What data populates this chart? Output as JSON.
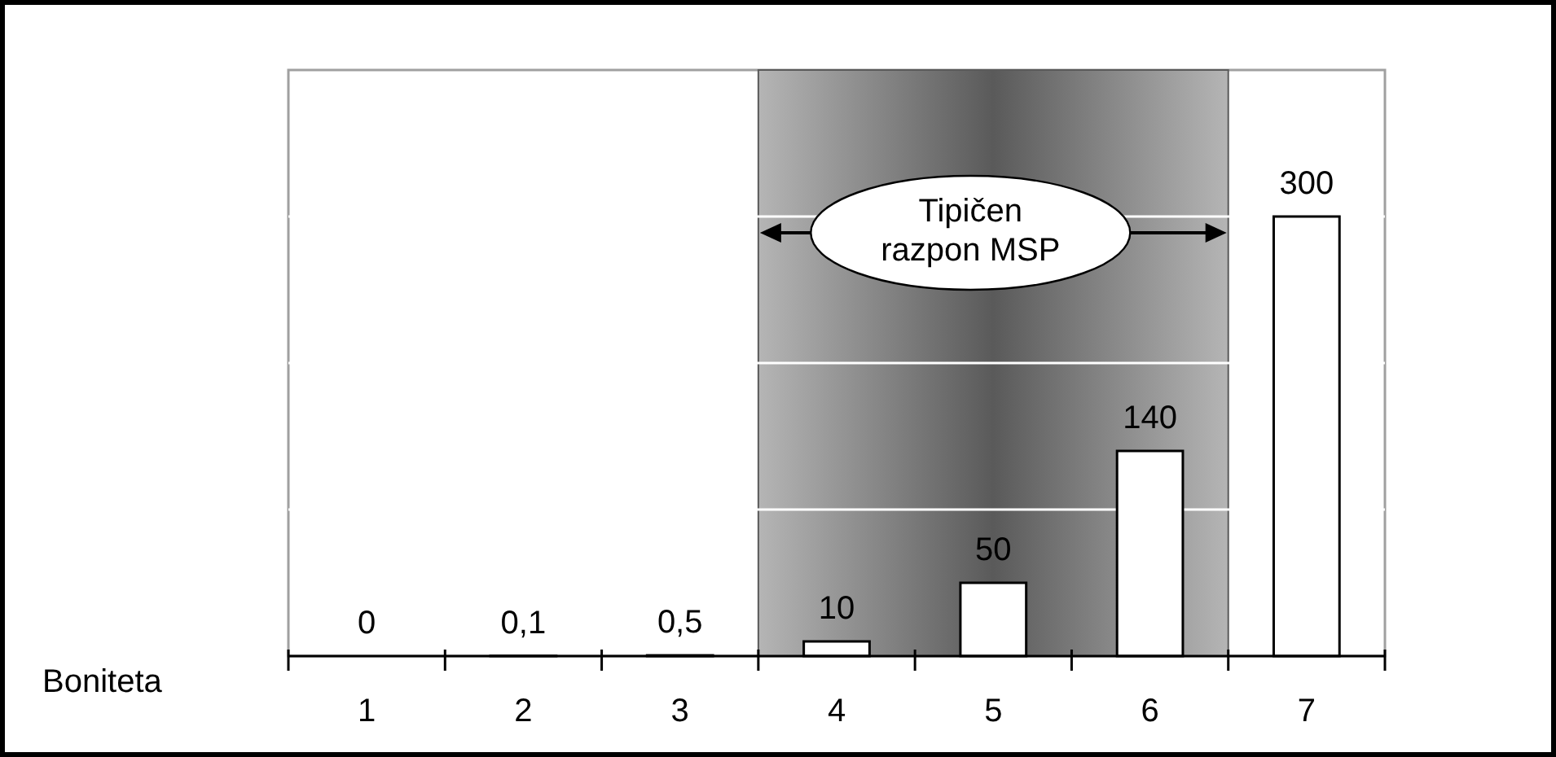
{
  "chart_data": {
    "type": "bar",
    "xlabel": "Boniteta",
    "categories": [
      "1",
      "2",
      "3",
      "4",
      "5",
      "6",
      "7"
    ],
    "values": [
      0,
      0.1,
      0.5,
      10,
      50,
      140,
      300
    ],
    "color": "#ffffff",
    "data_labels": true,
    "value_labels": [
      "0",
      "0,1",
      "0,5",
      "10",
      "50",
      "140",
      "300"
    ],
    "ylim": [
      0,
      400
    ],
    "yticks": [
      {
        "value": 100,
        "label": null
      },
      {
        "value": 200,
        "label": null
      },
      {
        "value": 300,
        "label": null
      }
    ],
    "grid": "y",
    "tick_labels": "x",
    "bands": [
      {
        "axis": "x",
        "from": "4",
        "to": "6",
        "label": "Tipičen\nrazpon MSP",
        "color": "#5a5a5a"
      }
    ]
  }
}
